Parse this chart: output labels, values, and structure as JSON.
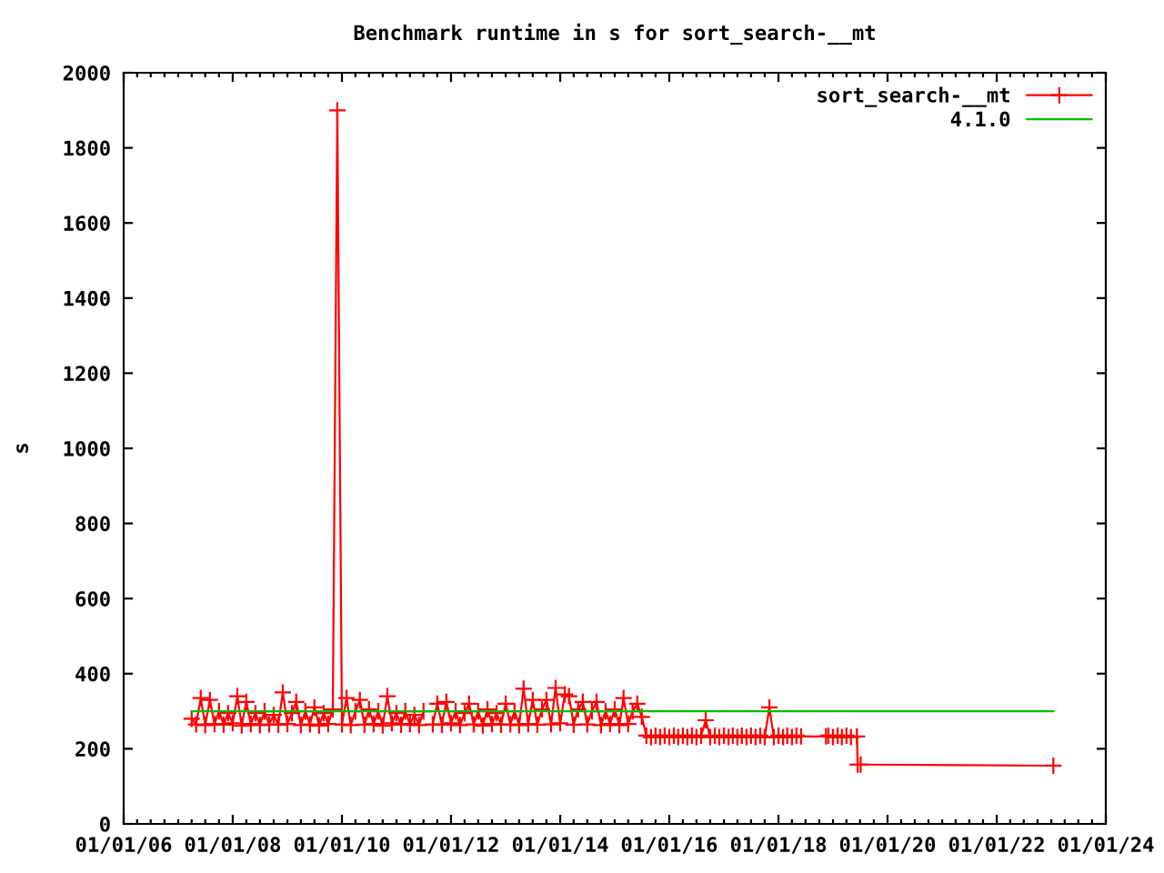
{
  "chart_data": {
    "type": "line",
    "title": "Benchmark runtime in s for sort_search-__mt",
    "ylabel": "s",
    "xlim": [
      "2006-01-01",
      "2024-01-01"
    ],
    "ylim": [
      0,
      2000
    ],
    "xticks": [
      {
        "value": "2006-01-01",
        "label": "01/01/06"
      },
      {
        "value": "2006-04-01",
        "label": null
      },
      {
        "value": "2006-07-01",
        "label": null
      },
      {
        "value": "2006-10-01",
        "label": null
      },
      {
        "value": "2007-01-01",
        "label": null
      },
      {
        "value": "2007-04-01",
        "label": null
      },
      {
        "value": "2007-07-01",
        "label": null
      },
      {
        "value": "2007-10-01",
        "label": null
      },
      {
        "value": "2008-01-01",
        "label": "01/01/08"
      },
      {
        "value": "2008-04-01",
        "label": null
      },
      {
        "value": "2008-07-01",
        "label": null
      },
      {
        "value": "2008-10-01",
        "label": null
      },
      {
        "value": "2009-01-01",
        "label": null
      },
      {
        "value": "2009-04-01",
        "label": null
      },
      {
        "value": "2009-07-01",
        "label": null
      },
      {
        "value": "2009-10-01",
        "label": null
      },
      {
        "value": "2010-01-01",
        "label": "01/01/10"
      },
      {
        "value": "2010-04-01",
        "label": null
      },
      {
        "value": "2010-07-01",
        "label": null
      },
      {
        "value": "2010-10-01",
        "label": null
      },
      {
        "value": "2011-01-01",
        "label": null
      },
      {
        "value": "2011-04-01",
        "label": null
      },
      {
        "value": "2011-07-01",
        "label": null
      },
      {
        "value": "2011-10-01",
        "label": null
      },
      {
        "value": "2012-01-01",
        "label": "01/01/12"
      },
      {
        "value": "2012-04-01",
        "label": null
      },
      {
        "value": "2012-07-01",
        "label": null
      },
      {
        "value": "2012-10-01",
        "label": null
      },
      {
        "value": "2013-01-01",
        "label": null
      },
      {
        "value": "2013-04-01",
        "label": null
      },
      {
        "value": "2013-07-01",
        "label": null
      },
      {
        "value": "2013-10-01",
        "label": null
      },
      {
        "value": "2014-01-01",
        "label": "01/01/14"
      },
      {
        "value": "2014-04-01",
        "label": null
      },
      {
        "value": "2014-07-01",
        "label": null
      },
      {
        "value": "2014-10-01",
        "label": null
      },
      {
        "value": "2015-01-01",
        "label": null
      },
      {
        "value": "2015-04-01",
        "label": null
      },
      {
        "value": "2015-07-01",
        "label": null
      },
      {
        "value": "2015-10-01",
        "label": null
      },
      {
        "value": "2016-01-01",
        "label": "01/01/16"
      },
      {
        "value": "2016-04-01",
        "label": null
      },
      {
        "value": "2016-07-01",
        "label": null
      },
      {
        "value": "2016-10-01",
        "label": null
      },
      {
        "value": "2017-01-01",
        "label": null
      },
      {
        "value": "2017-04-01",
        "label": null
      },
      {
        "value": "2017-07-01",
        "label": null
      },
      {
        "value": "2017-10-01",
        "label": null
      },
      {
        "value": "2018-01-01",
        "label": "01/01/18"
      },
      {
        "value": "2018-04-01",
        "label": null
      },
      {
        "value": "2018-07-01",
        "label": null
      },
      {
        "value": "2018-10-01",
        "label": null
      },
      {
        "value": "2019-01-01",
        "label": null
      },
      {
        "value": "2019-04-01",
        "label": null
      },
      {
        "value": "2019-07-01",
        "label": null
      },
      {
        "value": "2019-10-01",
        "label": null
      },
      {
        "value": "2020-01-01",
        "label": "01/01/20"
      },
      {
        "value": "2020-04-01",
        "label": null
      },
      {
        "value": "2020-07-01",
        "label": null
      },
      {
        "value": "2020-10-01",
        "label": null
      },
      {
        "value": "2021-01-01",
        "label": null
      },
      {
        "value": "2021-04-01",
        "label": null
      },
      {
        "value": "2021-07-01",
        "label": null
      },
      {
        "value": "2021-10-01",
        "label": null
      },
      {
        "value": "2022-01-01",
        "label": "01/01/22"
      },
      {
        "value": "2022-04-01",
        "label": null
      },
      {
        "value": "2022-07-01",
        "label": null
      },
      {
        "value": "2022-10-01",
        "label": null
      },
      {
        "value": "2023-01-01",
        "label": null
      },
      {
        "value": "2023-04-01",
        "label": null
      },
      {
        "value": "2023-07-01",
        "label": null
      },
      {
        "value": "2023-10-01",
        "label": null
      },
      {
        "value": "2024-01-01",
        "label": "01/01/24"
      }
    ],
    "yticks": [
      0,
      200,
      400,
      600,
      800,
      1000,
      1200,
      1400,
      1600,
      1800,
      2000
    ],
    "legend": "top right",
    "line_style": "solid",
    "series": [
      {
        "name": "sort_search-__mt",
        "color": "#ff0000",
        "marker": "cross",
        "x": [
          "2007-04-01",
          "2007-05-01",
          "2007-06-01",
          "2007-07-01",
          "2007-08-01",
          "2007-09-01",
          "2007-10-01",
          "2007-11-01",
          "2007-12-01",
          "2008-01-01",
          "2008-02-01",
          "2008-03-01",
          "2008-04-01",
          "2008-05-01",
          "2008-06-01",
          "2008-07-01",
          "2008-08-01",
          "2008-09-01",
          "2008-10-01",
          "2008-11-01",
          "2008-12-01",
          "2009-01-01",
          "2009-02-01",
          "2009-03-01",
          "2009-04-01",
          "2009-05-01",
          "2009-06-01",
          "2009-07-01",
          "2009-08-01",
          "2009-09-01",
          "2009-10-01",
          "2009-11-01",
          "2009-12-01",
          "2010-01-01",
          "2010-02-01",
          "2010-03-01",
          "2010-04-01",
          "2010-05-01",
          "2010-06-01",
          "2010-07-01",
          "2010-08-01",
          "2010-09-01",
          "2010-10-01",
          "2010-11-01",
          "2010-12-01",
          "2011-01-01",
          "2011-02-01",
          "2011-03-01",
          "2011-04-01",
          "2011-05-01",
          "2011-06-01",
          "2011-07-01",
          "2011-08-01",
          "2011-09-01",
          "2011-10-01",
          "2011-11-01",
          "2011-12-01",
          "2012-01-01",
          "2012-02-01",
          "2012-03-01",
          "2012-04-01",
          "2012-05-01",
          "2012-06-01",
          "2012-07-01",
          "2012-08-01",
          "2012-09-01",
          "2012-10-01",
          "2012-11-01",
          "2012-12-01",
          "2013-01-01",
          "2013-02-01",
          "2013-03-01",
          "2013-04-01",
          "2013-05-01",
          "2013-06-01",
          "2013-07-01",
          "2013-08-01",
          "2013-09-01",
          "2013-10-01",
          "2013-11-01",
          "2013-12-01",
          "2014-01-01",
          "2014-02-01",
          "2014-03-01",
          "2014-04-01",
          "2014-05-01",
          "2014-06-01",
          "2014-07-01",
          "2014-08-01",
          "2014-09-01",
          "2014-10-01",
          "2014-11-01",
          "2014-12-01",
          "2015-01-01",
          "2015-02-01",
          "2015-03-01",
          "2015-04-01",
          "2015-05-01",
          "2015-06-01",
          "2015-07-01",
          "2015-08-01",
          "2015-09-01",
          "2015-10-01",
          "2015-11-01",
          "2015-12-01",
          "2016-01-01",
          "2016-02-01",
          "2016-03-01",
          "2016-04-01",
          "2016-05-01",
          "2016-06-01",
          "2016-07-01",
          "2016-08-01",
          "2016-09-01",
          "2016-10-01",
          "2016-11-01",
          "2016-12-01",
          "2017-01-01",
          "2017-02-01",
          "2017-03-01",
          "2017-04-01",
          "2017-05-01",
          "2017-06-01",
          "2017-07-01",
          "2017-08-01",
          "2017-09-01",
          "2017-10-01",
          "2017-11-01",
          "2017-12-01",
          "2018-01-01",
          "2018-02-01",
          "2018-03-01",
          "2018-04-01",
          "2018-05-01",
          "2018-06-01",
          "2018-11-15",
          "2018-12-01",
          "2019-01-01",
          "2019-02-01",
          "2019-03-01",
          "2019-04-01",
          "2019-05-01",
          "2019-06-10",
          "2019-06-15",
          "2019-07-05",
          "2023-01-15"
        ],
        "values": [
          280,
          265,
          335,
          263,
          330,
          266,
          300,
          264,
          295,
          268,
          340,
          262,
          325,
          266,
          295,
          263,
          300,
          265,
          290,
          264,
          350,
          266,
          295,
          325,
          263,
          300,
          265,
          310,
          262,
          295,
          266,
          305,
          1900,
          265,
          335,
          263,
          300,
          330,
          264,
          305,
          266,
          300,
          262,
          340,
          268,
          295,
          264,
          300,
          266,
          290,
          263,
          300,
          null,
          265,
          320,
          264,
          325,
          268,
          300,
          263,
          295,
          320,
          265,
          300,
          262,
          305,
          266,
          295,
          264,
          320,
          265,
          300,
          263,
          360,
          266,
          330,
          264,
          305,
          330,
          265,
          362,
          268,
          345,
          340,
          264,
          305,
          325,
          265,
          300,
          325,
          263,
          300,
          266,
          305,
          263,
          335,
          266,
          300,
          320,
          285,
          235,
          231,
          235,
          231,
          235,
          231,
          235,
          231,
          235,
          231,
          235,
          231,
          235,
          276,
          231,
          235,
          231,
          235,
          231,
          235,
          231,
          235,
          231,
          235,
          231,
          235,
          231,
          310,
          231,
          235,
          231,
          235,
          231,
          235,
          233,
          233,
          235,
          231,
          235,
          231,
          235,
          231,
          233,
          158,
          158,
          155
        ]
      },
      {
        "name": "4.1.0",
        "color": "#00c000",
        "marker": "none",
        "x": [
          "2007-04-01",
          "2023-01-15"
        ],
        "values": [
          300,
          300
        ]
      }
    ]
  }
}
